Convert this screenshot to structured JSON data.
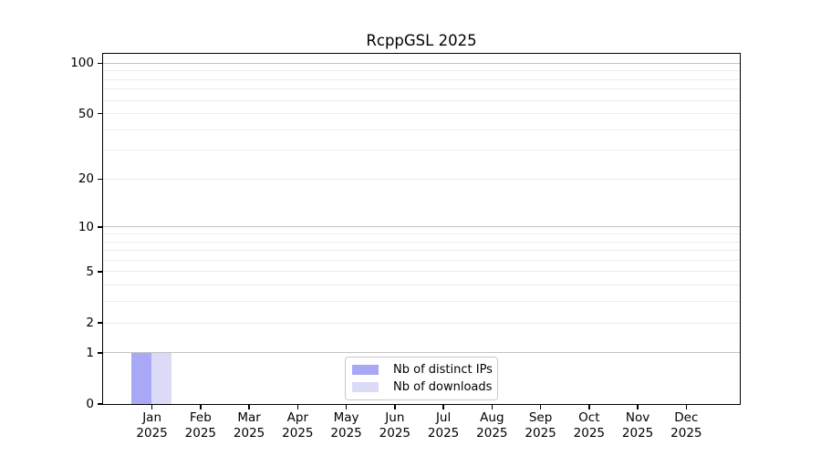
{
  "chart_data": {
    "type": "bar",
    "title": "RcppGSL 2025",
    "categories": [
      "Jan",
      "Feb",
      "Mar",
      "Apr",
      "May",
      "Jun",
      "Jul",
      "Aug",
      "Sep",
      "Oct",
      "Nov",
      "Dec"
    ],
    "category_year": "2025",
    "series": [
      {
        "name": "Nb of distinct IPs",
        "color": "#a8a8f7",
        "values": [
          1,
          0,
          0,
          0,
          0,
          0,
          0,
          0,
          0,
          0,
          0,
          0
        ]
      },
      {
        "name": "Nb of downloads",
        "color": "#dbdbf8",
        "values": [
          1,
          0,
          0,
          0,
          0,
          0,
          0,
          0,
          0,
          0,
          0,
          0
        ]
      }
    ],
    "xlabel": "",
    "ylabel": "",
    "yscale": "log1p",
    "ylim": [
      0,
      113
    ],
    "y_tick_values": [
      0,
      1,
      2,
      5,
      10,
      20,
      50,
      100
    ],
    "y_tick_labels": [
      "0",
      "1",
      "2",
      "5",
      "10",
      "20",
      "50",
      "100"
    ],
    "grid": {
      "major_values": [
        1,
        10,
        100
      ],
      "minor_values": [
        2,
        3,
        4,
        5,
        6,
        7,
        8,
        9,
        20,
        30,
        40,
        50,
        60,
        70,
        80,
        90
      ],
      "major_color": "#c3c3c3",
      "minor_color": "#ececec"
    },
    "legend_position": "bottom-center",
    "axis_color": "#000000",
    "background_color": "#ffffff"
  }
}
